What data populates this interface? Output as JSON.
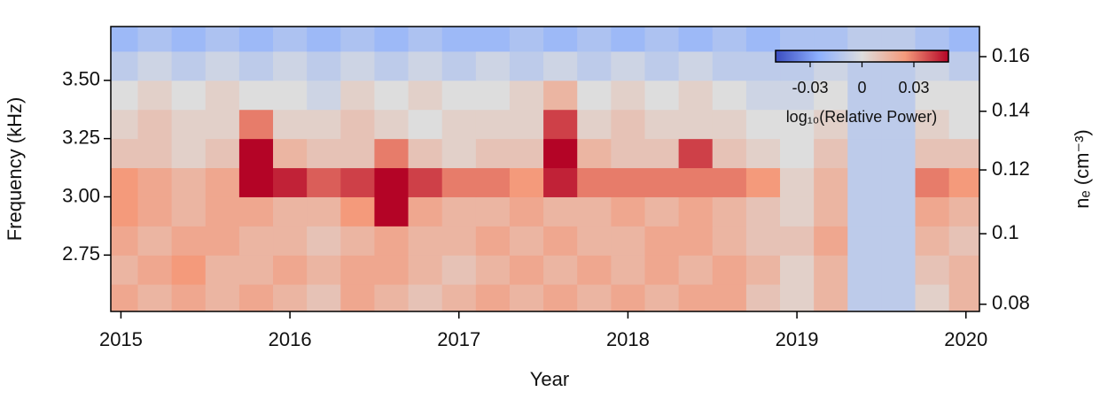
{
  "chart_data": {
    "type": "heatmap",
    "xlabel": "Year",
    "ylabel": "Frequency (kHz)",
    "y2label": "nₑ (cm⁻³)",
    "colorbar_label": "log₁₀(Relative Power)",
    "colormap": "coolwarm",
    "clim": [
      -0.05,
      0.05
    ],
    "cticks": [
      -0.03,
      0,
      0.03
    ],
    "xlim": [
      2014.94,
      2020.08
    ],
    "xticks": [
      2015,
      2016,
      2017,
      2018,
      2019,
      2020
    ],
    "ylim": [
      2.508,
      3.731
    ],
    "yticks": [
      2.75,
      {
        "value": 3,
        "label": "3.00"
      },
      3.25,
      {
        "value": 3.5,
        "label": "3.50"
      }
    ],
    "y2lim": [
      0.0781,
      0.1716
    ],
    "y2scale": "sqrt",
    "y2ticks": [
      0.08,
      0.1,
      0.12,
      0.14,
      0.16
    ],
    "xbins": [
      2014.9,
      2015.1,
      2015.3,
      2015.5,
      2015.7,
      2015.9,
      2016.1,
      2016.3,
      2016.5,
      2016.7,
      2016.9,
      2017.1,
      2017.3,
      2017.5,
      2017.7,
      2017.9,
      2018.1,
      2018.3,
      2018.5,
      2018.7,
      2018.9,
      2019.1,
      2019.3,
      2019.5,
      2019.7,
      2019.9,
      2020.1
    ],
    "ybins": [
      2.5,
      2.625,
      2.75,
      2.875,
      3.0,
      3.125,
      3.25,
      3.375,
      3.5,
      3.625,
      3.75
    ],
    "z": [
      [
        0.02,
        0.015,
        0.02,
        0.015,
        0.02,
        0.015,
        0.01,
        0.02,
        0.015,
        0.01,
        0.015,
        0.02,
        0.015,
        0.02,
        0.015,
        0.02,
        0.015,
        0.02,
        0.02,
        0.01,
        0.005,
        0.015,
        -0.01,
        -0.01,
        0.005,
        0.015
      ],
      [
        0.015,
        0.02,
        0.025,
        0.015,
        0.015,
        0.02,
        0.015,
        0.02,
        0.02,
        0.015,
        0.01,
        0.015,
        0.02,
        0.015,
        0.02,
        0.015,
        0.02,
        0.015,
        0.02,
        0.015,
        0.005,
        0.015,
        -0.01,
        -0.01,
        0.01,
        0.015
      ],
      [
        0.02,
        0.015,
        0.02,
        0.02,
        0.015,
        0.015,
        0.01,
        0.015,
        0.02,
        0.015,
        0.015,
        0.02,
        0.015,
        0.02,
        0.015,
        0.015,
        0.02,
        0.02,
        0.015,
        0.01,
        0.01,
        0.02,
        -0.01,
        -0.01,
        0.015,
        0.01
      ],
      [
        0.025,
        0.02,
        0.015,
        0.02,
        0.02,
        0.015,
        0.015,
        0.025,
        0.05,
        0.02,
        0.015,
        0.015,
        0.02,
        0.015,
        0.015,
        0.02,
        0.015,
        0.02,
        0.015,
        0.01,
        0.005,
        0.015,
        -0.01,
        -0.01,
        0.02,
        0.015
      ],
      [
        0.025,
        0.02,
        0.015,
        0.02,
        0.05,
        0.045,
        0.035,
        0.04,
        0.05,
        0.04,
        0.03,
        0.03,
        0.025,
        0.045,
        0.03,
        0.03,
        0.03,
        0.03,
        0.03,
        0.025,
        0.005,
        0.015,
        -0.01,
        -0.01,
        0.03,
        0.025
      ],
      [
        0.01,
        0.01,
        0.005,
        0.01,
        0.05,
        0.015,
        0.01,
        0.01,
        0.03,
        0.01,
        0.005,
        0.01,
        0.01,
        0.05,
        0.015,
        0.01,
        0.01,
        0.04,
        0.01,
        0.005,
        0,
        0.01,
        -0.01,
        -0.01,
        0.01,
        0.01
      ],
      [
        0.005,
        0.01,
        0.005,
        0.005,
        0.03,
        0.005,
        0.005,
        0.01,
        0.005,
        0,
        0.005,
        0.005,
        0.005,
        0.04,
        0.005,
        0.01,
        0.005,
        0.005,
        0.005,
        0,
        0,
        0.005,
        -0.01,
        -0.01,
        0.005,
        0
      ],
      [
        0,
        0.005,
        0,
        0.005,
        0,
        0,
        -0.005,
        0.005,
        0,
        0.005,
        0,
        0,
        0.005,
        0.015,
        0,
        0.005,
        0,
        0.005,
        0,
        -0.005,
        -0.005,
        0,
        -0.01,
        -0.01,
        0,
        0
      ],
      [
        -0.01,
        -0.005,
        -0.01,
        -0.005,
        -0.01,
        -0.005,
        -0.01,
        -0.005,
        -0.01,
        -0.005,
        -0.01,
        -0.005,
        -0.01,
        -0.005,
        -0.01,
        -0.005,
        -0.01,
        -0.005,
        -0.01,
        -0.01,
        -0.01,
        -0.005,
        -0.01,
        -0.01,
        -0.005,
        -0.01
      ],
      [
        -0.02,
        -0.015,
        -0.02,
        -0.015,
        -0.02,
        -0.015,
        -0.02,
        -0.015,
        -0.02,
        -0.015,
        -0.02,
        -0.02,
        -0.015,
        -0.02,
        -0.015,
        -0.02,
        -0.015,
        -0.02,
        -0.015,
        -0.02,
        -0.015,
        -0.015,
        -0.01,
        -0.01,
        -0.015,
        -0.02
      ]
    ]
  }
}
